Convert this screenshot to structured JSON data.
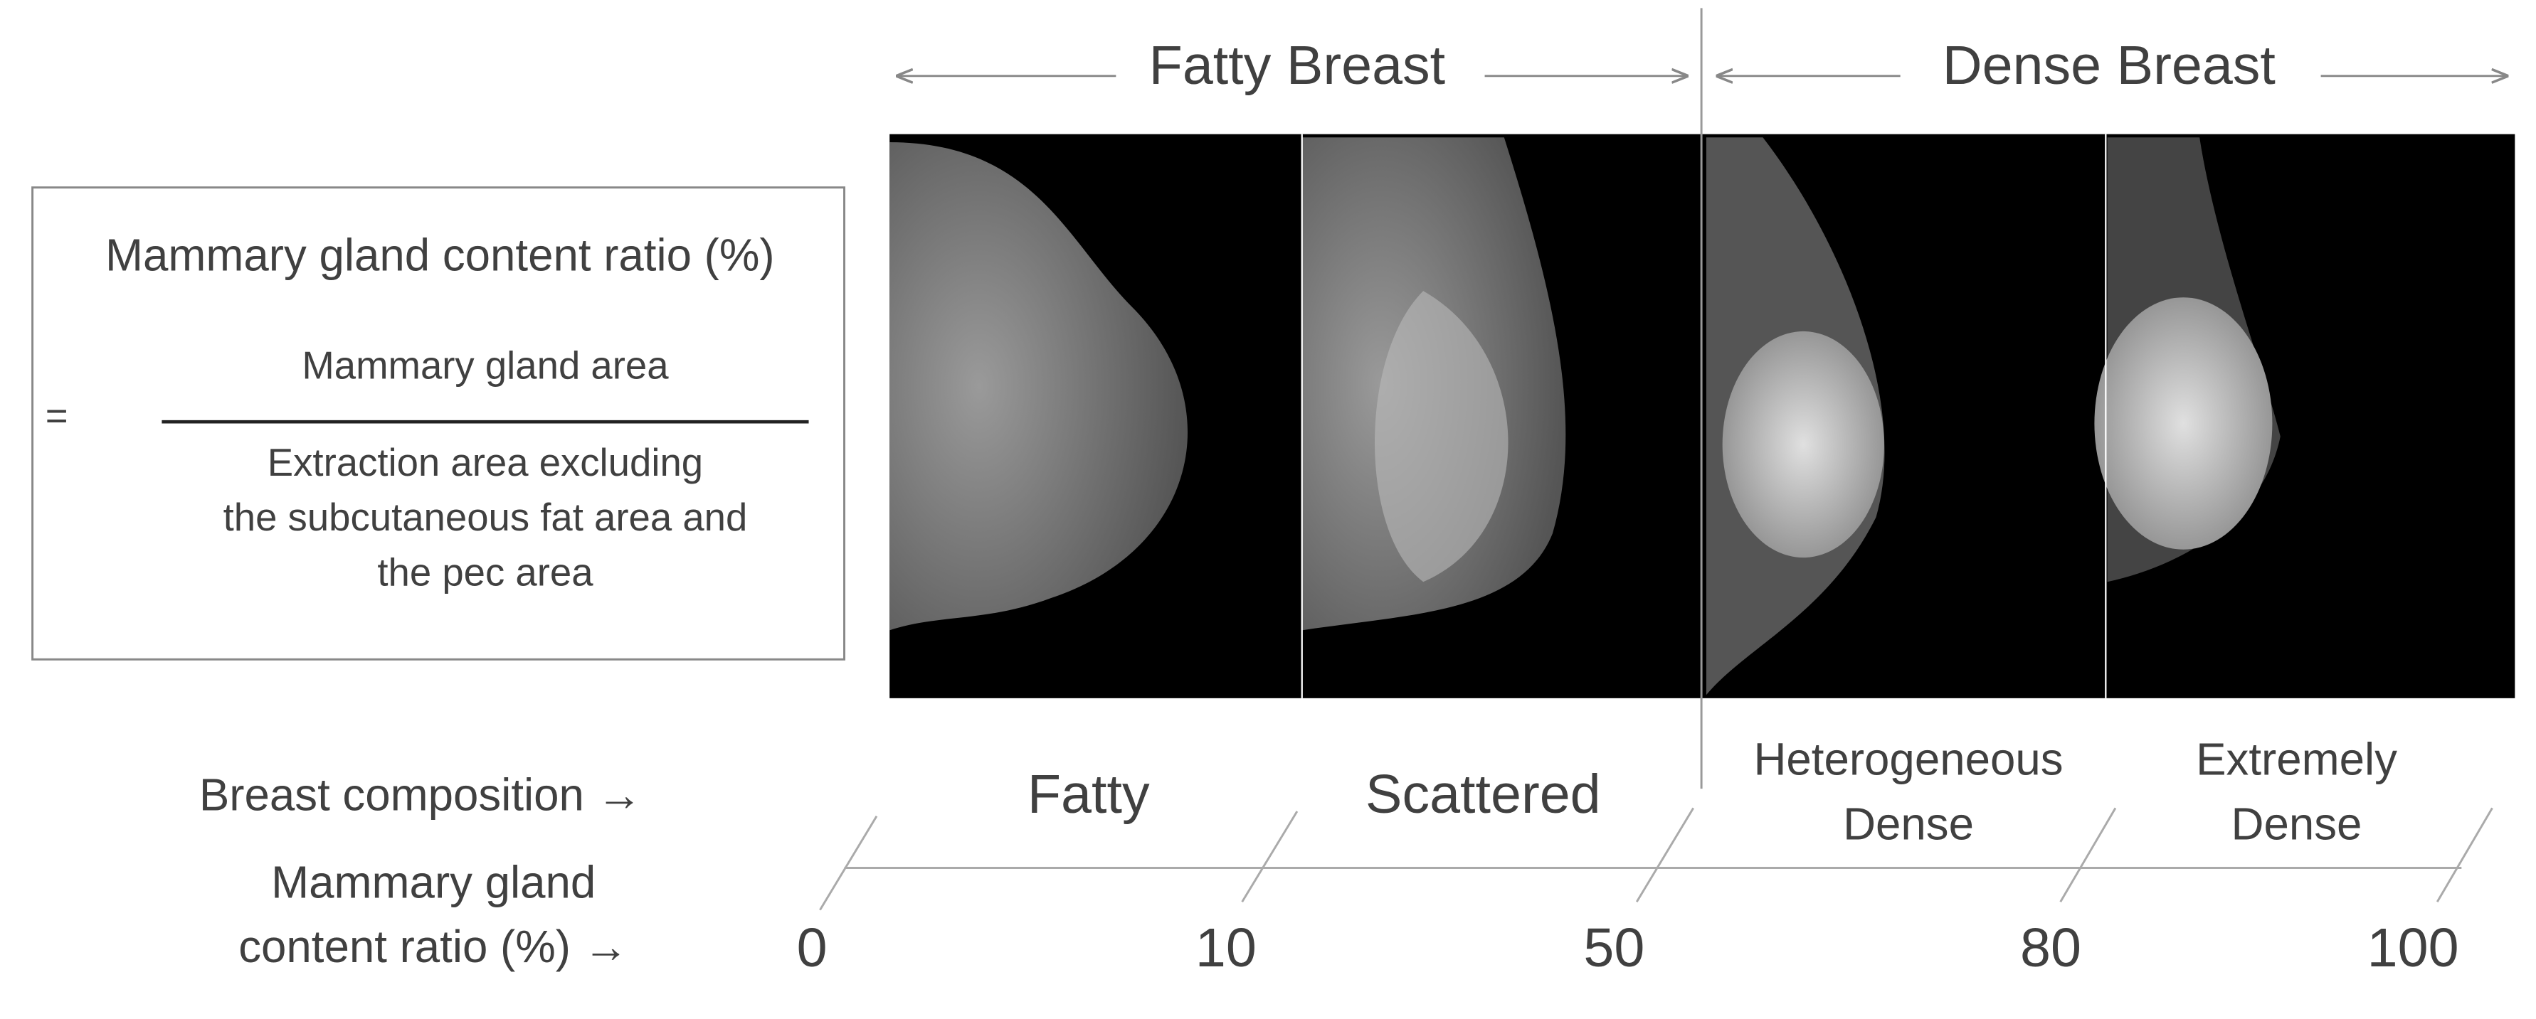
{
  "header": {
    "left": "Fatty Breast",
    "right": "Dense Breast"
  },
  "formula": {
    "title": "Mammary gland content ratio (%)",
    "equals": "=",
    "numerator": "Mammary gland area",
    "denominator": [
      "Extraction area excluding",
      "the subcutaneous fat area and",
      "the pec area"
    ]
  },
  "row_labels": {
    "composition": "Breast composition →",
    "ratio": [
      "Mammary gland",
      "content ratio (%) →"
    ]
  },
  "categories": [
    [
      "Fatty"
    ],
    [
      "Scattered"
    ],
    [
      "Heterogeneous",
      "Dense"
    ],
    [
      "Extremely",
      "Dense"
    ]
  ],
  "scale": [
    0,
    10,
    50,
    80,
    100
  ]
}
